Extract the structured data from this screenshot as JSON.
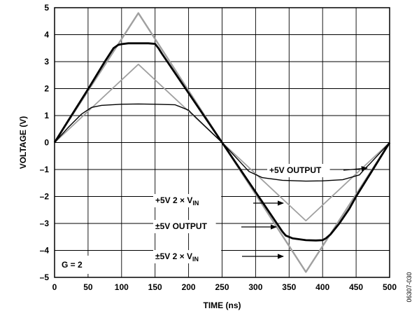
{
  "chart_data": {
    "type": "line",
    "xlabel": "TIME (ns)",
    "ylabel": "VOLTAGE (V)",
    "xlim": [
      0,
      500
    ],
    "ylim": [
      -5,
      5
    ],
    "xticks": [
      "0",
      "50",
      "100",
      "150",
      "200",
      "250",
      "300",
      "350",
      "400",
      "450",
      "500"
    ],
    "yticks": [
      "5",
      "4",
      "3",
      "2",
      "1",
      "0",
      "–1",
      "–2",
      "–3",
      "–4",
      "–5"
    ],
    "grid": true,
    "gain_label": "G = 2",
    "figure_id": "06307-030",
    "series": [
      {
        "name": "±5V 2 × VIN",
        "color": "#a0a0a0",
        "x": [
          0,
          125,
          375,
          500
        ],
        "y": [
          0,
          4.8,
          -4.8,
          0
        ]
      },
      {
        "name": "+5V 2 × VIN",
        "color": "#a0a0a0",
        "x": [
          0,
          125,
          375,
          500
        ],
        "y": [
          0,
          2.9,
          -2.9,
          0
        ]
      },
      {
        "name": "±5V OUTPUT",
        "color": "#000000",
        "x": [
          0,
          20,
          50,
          75,
          88,
          95,
          100,
          110,
          125,
          140,
          150,
          155,
          160,
          250,
          340,
          345,
          355,
          375,
          390,
          400,
          405,
          412,
          425,
          440,
          450,
          470,
          500
        ],
        "y": [
          0,
          0.8,
          1.98,
          3.0,
          3.5,
          3.62,
          3.65,
          3.68,
          3.68,
          3.68,
          3.66,
          3.5,
          3.3,
          0,
          -3.3,
          -3.45,
          -3.55,
          -3.62,
          -3.63,
          -3.62,
          -3.55,
          -3.4,
          -3.0,
          -2.45,
          -2.0,
          -1.2,
          0
        ]
      },
      {
        "name": "+5V OUTPUT",
        "color": "#000000",
        "x": [
          0,
          20,
          40,
          55,
          70,
          100,
          125,
          150,
          180,
          200,
          205,
          250,
          290,
          310,
          340,
          375,
          400,
          430,
          455,
          462,
          470,
          500
        ],
        "y": [
          0,
          0.55,
          1.05,
          1.3,
          1.38,
          1.42,
          1.43,
          1.42,
          1.4,
          1.2,
          1.07,
          0,
          -1.07,
          -1.3,
          -1.4,
          -1.43,
          -1.42,
          -1.38,
          -1.2,
          -1.0,
          -0.8,
          0
        ]
      }
    ],
    "annotations": [
      {
        "main": "+5V  OUTPUT",
        "sub": ""
      },
      {
        "main": "+5V  2 × V",
        "sub": "IN"
      },
      {
        "main": "±5V  OUTPUT",
        "sub": ""
      },
      {
        "main": "±5V  2 × V",
        "sub": "IN"
      }
    ]
  }
}
